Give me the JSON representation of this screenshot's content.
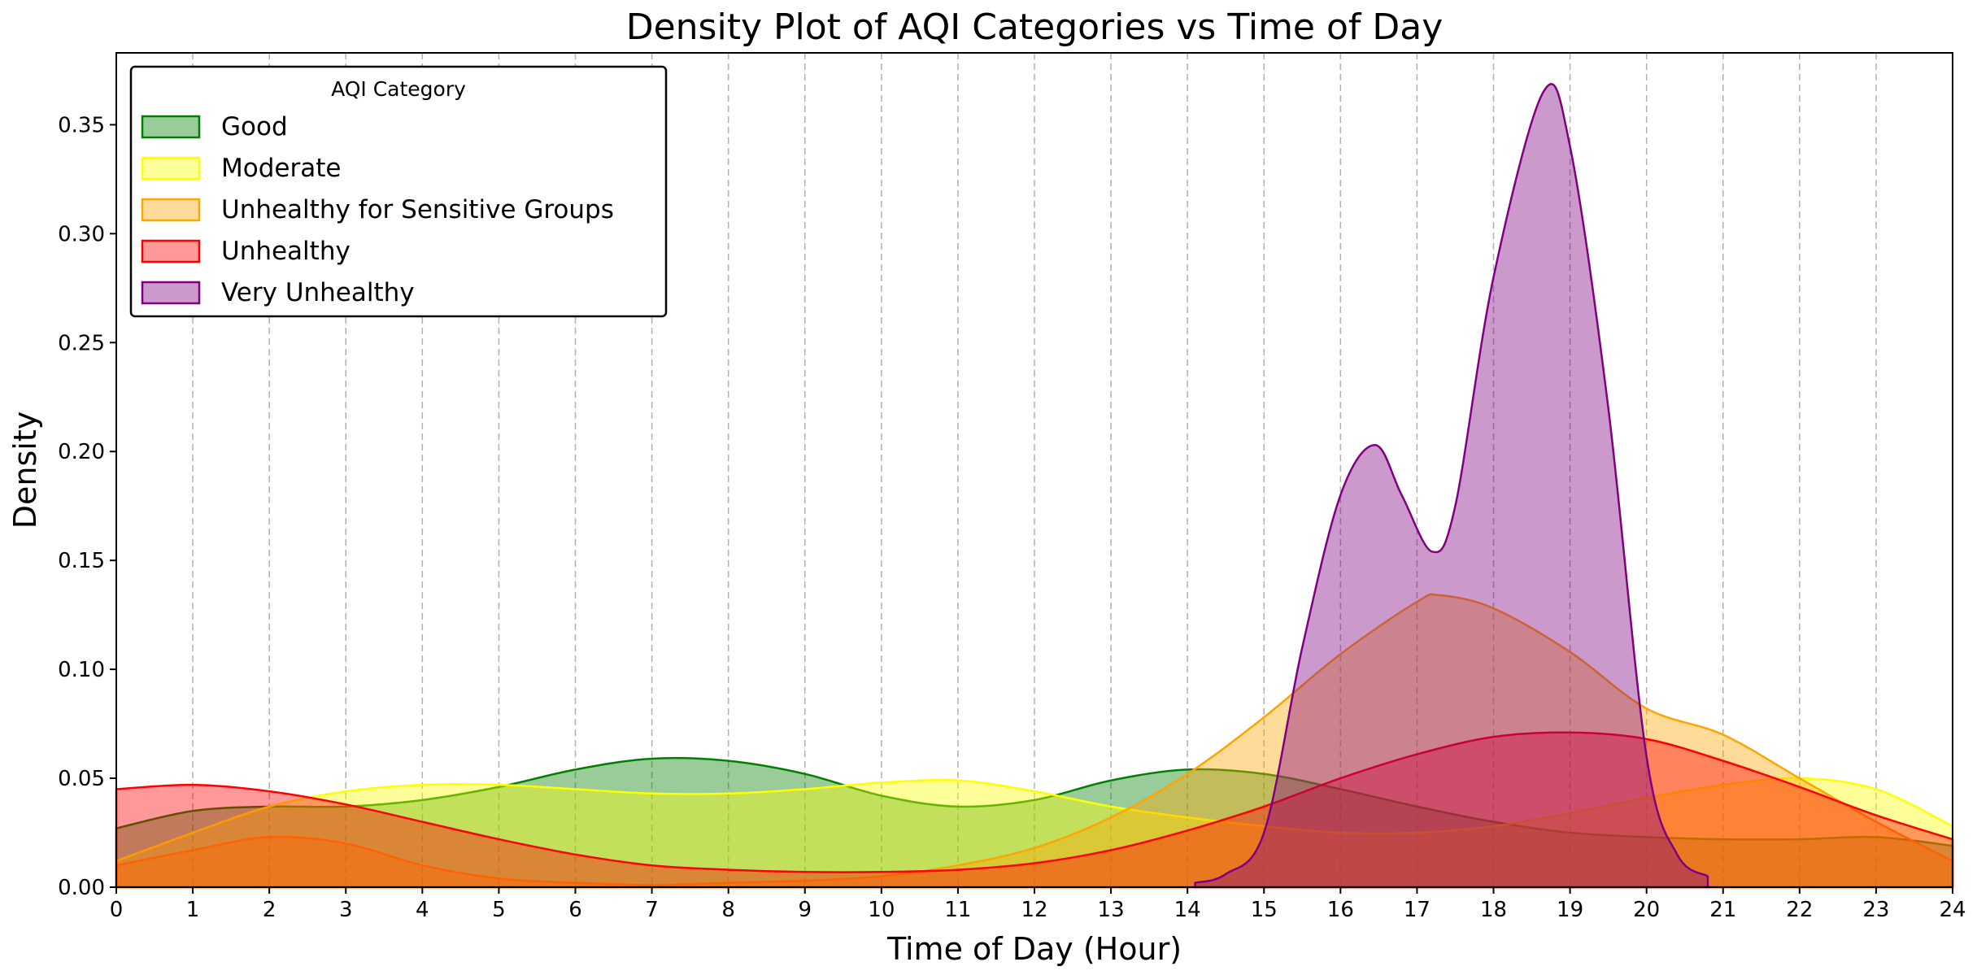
{
  "chart_data": {
    "type": "area",
    "title": "Density Plot of AQI Categories vs Time of Day",
    "xlabel": "Time of Day (Hour)",
    "ylabel": "Density",
    "xlim": [
      0,
      24
    ],
    "ylim": [
      0,
      0.383
    ],
    "xticks": [
      "0",
      "1",
      "2",
      "3",
      "4",
      "5",
      "6",
      "7",
      "8",
      "9",
      "10",
      "11",
      "12",
      "13",
      "14",
      "15",
      "16",
      "17",
      "18",
      "19",
      "20",
      "21",
      "22",
      "23",
      "24"
    ],
    "yticks": [
      "0.00",
      "0.05",
      "0.10",
      "0.15",
      "0.20",
      "0.25",
      "0.30",
      "0.35"
    ],
    "grid": "x-dashed",
    "legend": {
      "title": "AQI Category",
      "placement": "top-left"
    },
    "series": [
      {
        "name": "Good",
        "color": "#008000",
        "x": [
          0,
          1,
          2,
          3,
          4,
          5,
          6,
          7,
          8,
          9,
          10,
          11,
          12,
          13,
          14,
          15,
          16,
          17,
          18,
          19,
          20,
          21,
          22,
          23,
          24
        ],
        "y": [
          0.027,
          0.035,
          0.037,
          0.037,
          0.04,
          0.046,
          0.054,
          0.059,
          0.058,
          0.052,
          0.042,
          0.037,
          0.04,
          0.049,
          0.054,
          0.052,
          0.045,
          0.037,
          0.03,
          0.025,
          0.023,
          0.022,
          0.022,
          0.023,
          0.019
        ]
      },
      {
        "name": "Moderate",
        "color": "#ffff00",
        "x": [
          0,
          1,
          2,
          3,
          4,
          5,
          6,
          7,
          8,
          9,
          10,
          11,
          12,
          13,
          14,
          15,
          16,
          17,
          18,
          19,
          20,
          21,
          22,
          23,
          24
        ],
        "y": [
          0.012,
          0.025,
          0.037,
          0.044,
          0.047,
          0.047,
          0.045,
          0.043,
          0.043,
          0.045,
          0.048,
          0.049,
          0.044,
          0.037,
          0.032,
          0.028,
          0.025,
          0.025,
          0.028,
          0.034,
          0.041,
          0.047,
          0.05,
          0.045,
          0.028
        ]
      },
      {
        "name": "Unhealthy for Sensitive Groups",
        "color": "#ffa500",
        "x": [
          0,
          1,
          2,
          3,
          4,
          5,
          6,
          7,
          8,
          9,
          10,
          11,
          12,
          13,
          14,
          15,
          16,
          17,
          17.3,
          18,
          19,
          20,
          21,
          22,
          23,
          24
        ],
        "y": [
          0.01,
          0.017,
          0.023,
          0.02,
          0.01,
          0.004,
          0.002,
          0.001,
          0.002,
          0.003,
          0.005,
          0.01,
          0.018,
          0.032,
          0.052,
          0.078,
          0.107,
          0.131,
          0.134,
          0.128,
          0.108,
          0.082,
          0.07,
          0.05,
          0.03,
          0.012
        ]
      },
      {
        "name": "Unhealthy",
        "color": "#ff0000",
        "x": [
          0,
          1,
          2,
          3,
          4,
          5,
          6,
          7,
          8,
          9,
          10,
          11,
          12,
          13,
          14,
          15,
          16,
          17,
          18,
          19,
          20,
          21,
          22,
          23,
          24
        ],
        "y": [
          0.045,
          0.047,
          0.044,
          0.038,
          0.03,
          0.022,
          0.015,
          0.01,
          0.008,
          0.007,
          0.007,
          0.008,
          0.011,
          0.017,
          0.026,
          0.037,
          0.05,
          0.061,
          0.069,
          0.071,
          0.068,
          0.058,
          0.046,
          0.033,
          0.022
        ]
      },
      {
        "name": "Very Unhealthy",
        "color": "#800080",
        "x": [
          14.1,
          14.5,
          15,
          15.5,
          16,
          16.45,
          16.8,
          17.2,
          17.5,
          18,
          18.65,
          19,
          19.5,
          20,
          20.4,
          20.8
        ],
        "y": [
          0.002,
          0.006,
          0.025,
          0.11,
          0.18,
          0.203,
          0.18,
          0.154,
          0.175,
          0.28,
          0.365,
          0.34,
          0.22,
          0.06,
          0.015,
          0.005
        ]
      }
    ]
  }
}
